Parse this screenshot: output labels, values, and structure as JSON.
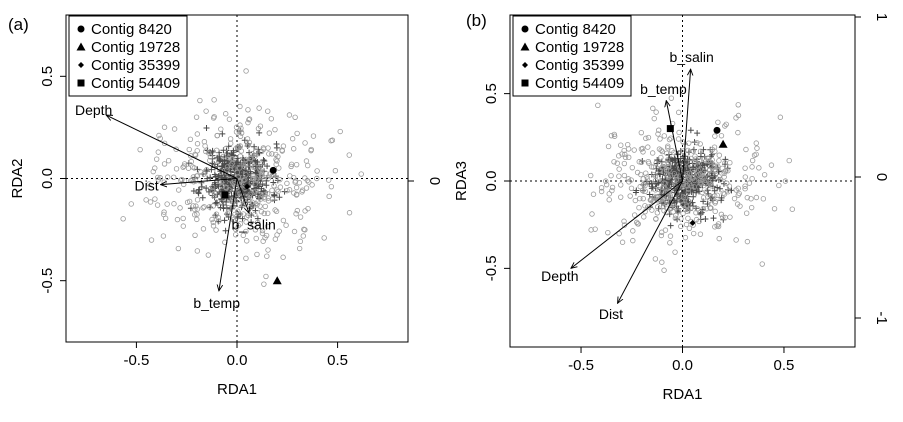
{
  "chart_data": [
    {
      "type": "scatter",
      "panel_label": "(a)",
      "xlabel": "RDA1",
      "ylabel": "RDA2",
      "xlim": [
        -0.85,
        0.85
      ],
      "ylim": [
        -0.8,
        0.8
      ],
      "x_ticks": [
        "-0.5",
        "0.0",
        "0.5"
      ],
      "y_ticks": [
        "-0.5",
        "0.0",
        "0.5"
      ],
      "right_ticks": [
        "0"
      ],
      "legend": [
        {
          "label": "Contig 8420",
          "marker": "circle"
        },
        {
          "label": "Contig 19728",
          "marker": "triangle"
        },
        {
          "label": "Contig 35399",
          "marker": "diamond"
        },
        {
          "label": "Contig 54409",
          "marker": "square"
        }
      ],
      "legend_position": "top-left",
      "vectors": [
        {
          "label": "Depth",
          "x": -0.65,
          "y": 0.31
        },
        {
          "label": "Dist",
          "x": -0.38,
          "y": -0.03
        },
        {
          "label": "b_salin",
          "x": 0.06,
          "y": -0.17
        },
        {
          "label": "b_temp",
          "x": -0.09,
          "y": -0.55
        }
      ],
      "contigs": [
        {
          "label": "Contig 8420",
          "x": 0.18,
          "y": 0.04
        },
        {
          "label": "Contig 19728",
          "x": 0.2,
          "y": -0.5
        },
        {
          "label": "Contig 35399",
          "x": 0.05,
          "y": -0.04
        },
        {
          "label": "Contig 54409",
          "x": -0.06,
          "y": -0.08
        }
      ]
    },
    {
      "type": "scatter",
      "panel_label": "(b)",
      "xlabel": "RDA1",
      "ylabel": "RDA3",
      "xlim": [
        -0.85,
        0.85
      ],
      "ylim": [
        -0.95,
        0.95
      ],
      "x_ticks": [
        "-0.5",
        "0.0",
        "0.5"
      ],
      "y_ticks": [
        "-0.5",
        "0.0",
        "0.5"
      ],
      "right_ticks": [
        "-1",
        "0",
        "1"
      ],
      "legend": [
        {
          "label": "Contig 8420",
          "marker": "circle"
        },
        {
          "label": "Contig 19728",
          "marker": "triangle"
        },
        {
          "label": "Contig 35399",
          "marker": "diamond"
        },
        {
          "label": "Contig 54409",
          "marker": "square"
        }
      ],
      "legend_position": "top-left",
      "vectors": [
        {
          "label": "Depth",
          "x": -0.55,
          "y": -0.5
        },
        {
          "label": "Dist",
          "x": -0.32,
          "y": -0.7
        },
        {
          "label": "b_temp",
          "x": -0.08,
          "y": 0.46
        },
        {
          "label": "b_salin",
          "x": 0.04,
          "y": 0.64
        }
      ],
      "contigs": [
        {
          "label": "Contig 8420",
          "x": 0.17,
          "y": 0.29
        },
        {
          "label": "Contig 19728",
          "x": 0.2,
          "y": 0.21
        },
        {
          "label": "Contig 35399",
          "x": 0.05,
          "y": -0.24
        },
        {
          "label": "Contig 54409",
          "x": -0.06,
          "y": 0.3
        }
      ]
    }
  ]
}
